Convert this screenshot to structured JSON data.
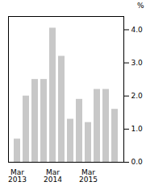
{
  "chart_data": {
    "type": "bar",
    "ylabel": "%",
    "categories": [
      "Mar\n2013",
      null,
      null,
      null,
      "Mar\n2014",
      null,
      null,
      null,
      "Mar\n2015",
      null,
      null,
      null
    ],
    "values": [
      0.7,
      2.0,
      2.5,
      2.5,
      4.05,
      3.2,
      1.3,
      1.9,
      1.2,
      2.2,
      2.2,
      1.6
    ],
    "color": "#c8c8c8",
    "ylim": [
      0,
      4.4
    ],
    "yticks": [
      0,
      1,
      2,
      3,
      4
    ],
    "grid": false
  }
}
